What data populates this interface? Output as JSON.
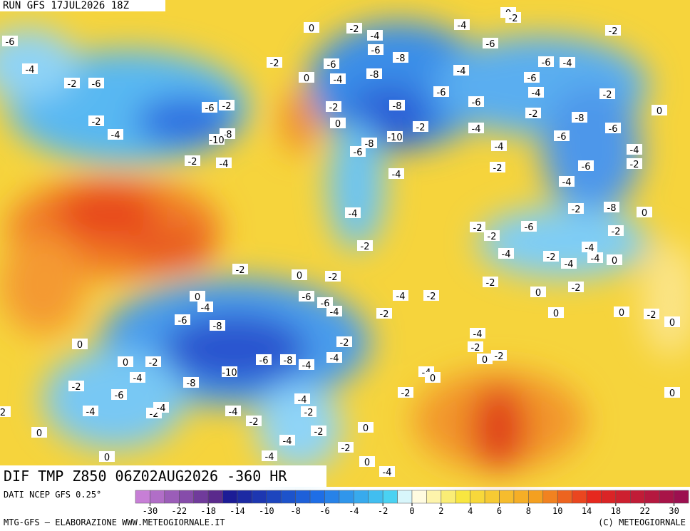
{
  "header": {
    "run": "RUN GFS 17JUL2026 18Z"
  },
  "map": {
    "title": "DIF TMP Z850 06Z02AUG2026 -360 HR",
    "contour_labels": [
      0,
      -2,
      -4,
      -6,
      -8,
      -8,
      -4,
      -6,
      0,
      -2,
      -4,
      0,
      -2,
      -6,
      -4,
      -6,
      -6,
      -6,
      -4,
      -4,
      -2,
      -2,
      0,
      -6,
      -2,
      -8,
      -6,
      -6,
      -4,
      -2,
      -6,
      -4,
      -4,
      -2,
      -4,
      -2,
      -8,
      -10,
      -8,
      -6,
      -4,
      -2,
      0,
      -6,
      -2,
      -8,
      -10,
      -2,
      -4,
      -4,
      -2,
      -4,
      -2,
      -2,
      -2,
      -6,
      -4,
      -2,
      -8,
      0,
      -2,
      -4,
      -4,
      -2,
      -4,
      0,
      -2,
      -2,
      0,
      0,
      0,
      -2,
      0,
      -2,
      0,
      -2,
      -6,
      -6,
      -4,
      -2,
      -4,
      -2,
      0,
      -4,
      -6,
      -8,
      0,
      0,
      -2,
      -4,
      -2,
      -6,
      -8,
      -10,
      -6,
      -8,
      -4,
      -4,
      -2,
      -4,
      -2,
      0,
      -2,
      -4,
      0,
      -2,
      0,
      -4,
      -2,
      -4,
      -4,
      -4,
      -2,
      -2,
      0,
      0,
      -2,
      -4,
      0,
      -4,
      -2,
      0,
      -4,
      2,
      -6,
      -4,
      -2,
      -6
    ]
  },
  "legend": {
    "source": "DATI NCEP GFS 0.25°",
    "ticks": [
      -30,
      -22,
      -18,
      -14,
      -10,
      -8,
      -6,
      -4,
      -2,
      0,
      2,
      4,
      6,
      8,
      10,
      14,
      18,
      22,
      30
    ]
  },
  "footer": {
    "left": "MTG-GFS — ELABORAZIONE WWW.METEOGIORNALE.IT",
    "right": "(C) METEOGIORNALE"
  }
}
